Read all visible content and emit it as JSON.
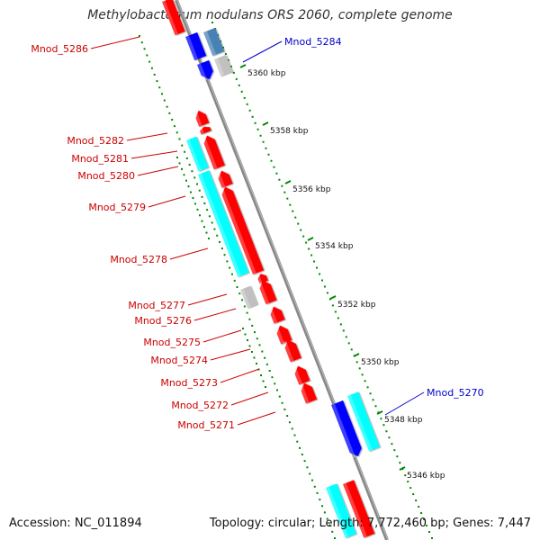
{
  "title": "Methylobacterium nodulans ORS 2060, complete genome",
  "accession": "Accession: NC_011894",
  "summary": "Topology: circular; Length: 7,772,460 bp; Genes: 7,447",
  "colors": {
    "forward_cds": "#ff0000",
    "reverse_cds": "#0000ff",
    "forward_other": "#00ffff",
    "reverse_other": "#4682b4",
    "gray_feature": "#c0c0c0",
    "backbone": "#888888",
    "dots": "#008800",
    "forward_label": "#cc0000",
    "reverse_label": "#0000cc"
  },
  "ticks": [
    {
      "label": "5360 kbp"
    },
    {
      "label": "5358 kbp"
    },
    {
      "label": "5356 kbp"
    },
    {
      "label": "5354 kbp"
    },
    {
      "label": "5352 kbp"
    },
    {
      "label": "5350 kbp"
    },
    {
      "label": "5348 kbp"
    },
    {
      "label": "5346 kbp"
    }
  ],
  "genes": [
    {
      "label": "Mnod_5286",
      "strand": "forward"
    },
    {
      "label": "Mnod_5284",
      "strand": "reverse"
    },
    {
      "label": "Mnod_5282",
      "strand": "forward"
    },
    {
      "label": "Mnod_5281",
      "strand": "forward"
    },
    {
      "label": "Mnod_5280",
      "strand": "forward"
    },
    {
      "label": "Mnod_5279",
      "strand": "forward"
    },
    {
      "label": "Mnod_5278",
      "strand": "forward"
    },
    {
      "label": "Mnod_5277",
      "strand": "forward"
    },
    {
      "label": "Mnod_5276",
      "strand": "forward"
    },
    {
      "label": "Mnod_5275",
      "strand": "forward"
    },
    {
      "label": "Mnod_5274",
      "strand": "forward"
    },
    {
      "label": "Mnod_5273",
      "strand": "forward"
    },
    {
      "label": "Mnod_5272",
      "strand": "forward"
    },
    {
      "label": "Mnod_5271",
      "strand": "forward"
    },
    {
      "label": "Mnod_5270",
      "strand": "reverse"
    }
  ]
}
